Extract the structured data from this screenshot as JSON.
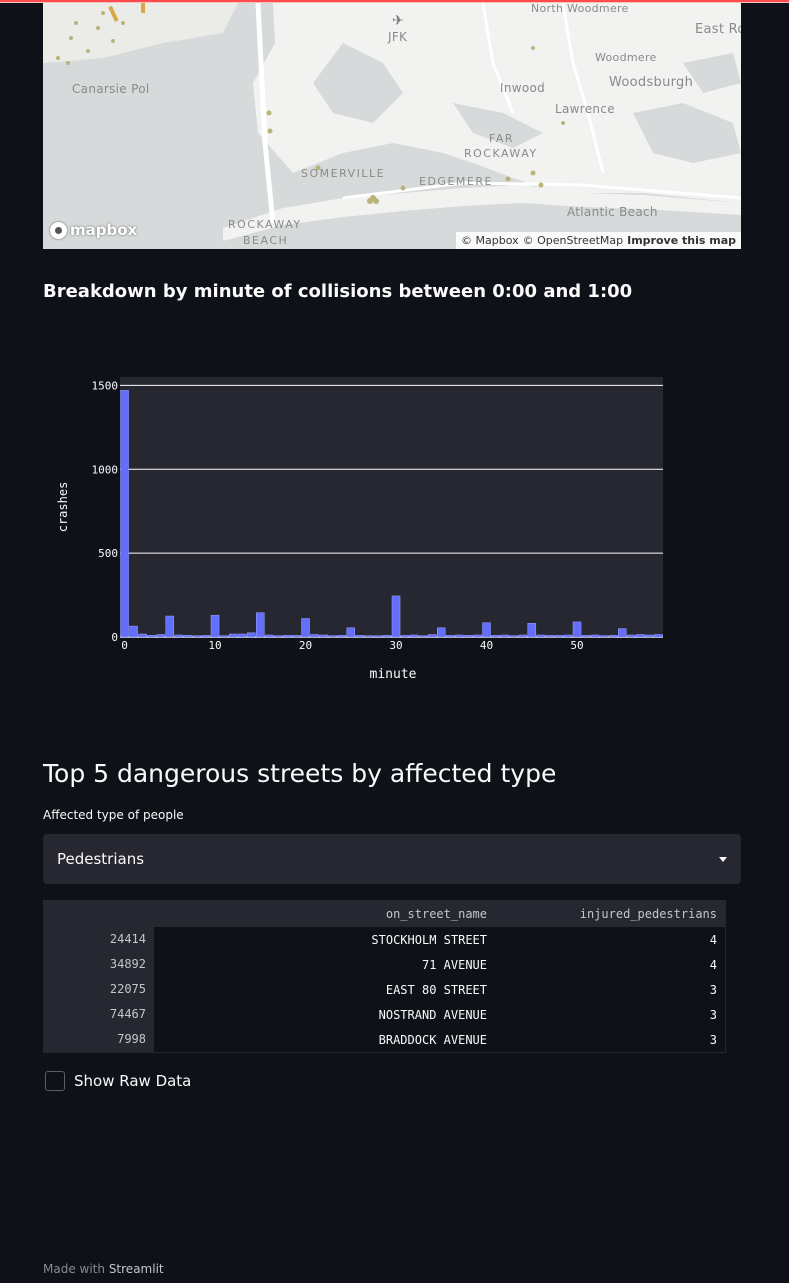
{
  "map": {
    "labels": [
      {
        "text": "North Woodmere",
        "cls": ""
      },
      {
        "text": "JFK",
        "cls": ""
      },
      {
        "text": "East Ro",
        "cls": "big"
      },
      {
        "text": "Woodmere",
        "cls": ""
      },
      {
        "text": "Woodsburgh",
        "cls": "big"
      },
      {
        "text": "Canarsie Pol",
        "cls": ""
      },
      {
        "text": "Inwood",
        "cls": ""
      },
      {
        "text": "Lawrence",
        "cls": ""
      },
      {
        "text": "FAR",
        "cls": "caps"
      },
      {
        "text": "ROCKAWAY",
        "cls": "caps"
      },
      {
        "text": "SOMERVILLE",
        "cls": "caps"
      },
      {
        "text": "EDGEMERE",
        "cls": "caps"
      },
      {
        "text": "Atlantic Beach",
        "cls": ""
      },
      {
        "text": "ROCKAWAY",
        "cls": "caps"
      },
      {
        "text": "BEACH",
        "cls": "caps"
      }
    ],
    "logo_text": "mapbox",
    "attribution": {
      "mapbox": "© Mapbox",
      "osm": "© OpenStreetMap",
      "improve": "Improve this map"
    }
  },
  "minute_section": {
    "heading": "Breakdown by minute of collisions between 0:00 and 1:00"
  },
  "chart_data": {
    "type": "bar",
    "xlabel": "minute",
    "ylabel": "crashes",
    "ylim": [
      0,
      1550
    ],
    "xlim": [
      -0.5,
      59.5
    ],
    "x_ticks": [
      "0",
      "10",
      "20",
      "30",
      "40",
      "50"
    ],
    "y_ticks": [
      "0",
      "500",
      "1000",
      "1500"
    ],
    "grid": true,
    "bar_color": "#636efa",
    "plot_bg": "#262730",
    "x": [
      0,
      1,
      2,
      3,
      4,
      5,
      6,
      7,
      8,
      9,
      10,
      11,
      12,
      13,
      14,
      15,
      16,
      17,
      18,
      19,
      20,
      21,
      22,
      23,
      24,
      25,
      26,
      27,
      28,
      29,
      30,
      31,
      32,
      33,
      34,
      35,
      36,
      37,
      38,
      39,
      40,
      41,
      42,
      43,
      44,
      45,
      46,
      47,
      48,
      49,
      50,
      51,
      52,
      53,
      54,
      55,
      56,
      57,
      58,
      59
    ],
    "values": [
      1470,
      65,
      18,
      10,
      15,
      125,
      12,
      10,
      8,
      10,
      130,
      8,
      18,
      18,
      25,
      145,
      12,
      8,
      10,
      10,
      110,
      15,
      12,
      8,
      10,
      55,
      10,
      8,
      8,
      10,
      245,
      10,
      12,
      8,
      15,
      55,
      10,
      12,
      10,
      12,
      85,
      10,
      12,
      8,
      12,
      82,
      12,
      10,
      10,
      12,
      90,
      10,
      12,
      8,
      10,
      50,
      12,
      15,
      12,
      15
    ]
  },
  "streets_section": {
    "heading": "Top 5 dangerous streets by affected type",
    "select_label": "Affected type of people",
    "select_value": "Pedestrians",
    "table": {
      "columns": [
        "",
        "on_street_name",
        "injured_pedestrians"
      ],
      "rows": [
        {
          "idx": "24414",
          "street": "STOCKHOLM STREET",
          "injured": "4"
        },
        {
          "idx": "34892",
          "street": "71 AVENUE",
          "injured": "4"
        },
        {
          "idx": "22075",
          "street": "EAST 80 STREET",
          "injured": "3"
        },
        {
          "idx": "74467",
          "street": "NOSTRAND AVENUE",
          "injured": "3"
        },
        {
          "idx": "7998",
          "street": "BRADDOCK AVENUE",
          "injured": "3"
        }
      ]
    },
    "checkbox_label": "Show Raw Data",
    "checkbox_checked": false
  },
  "footer": {
    "prefix": "Made with",
    "brand": "Streamlit"
  }
}
